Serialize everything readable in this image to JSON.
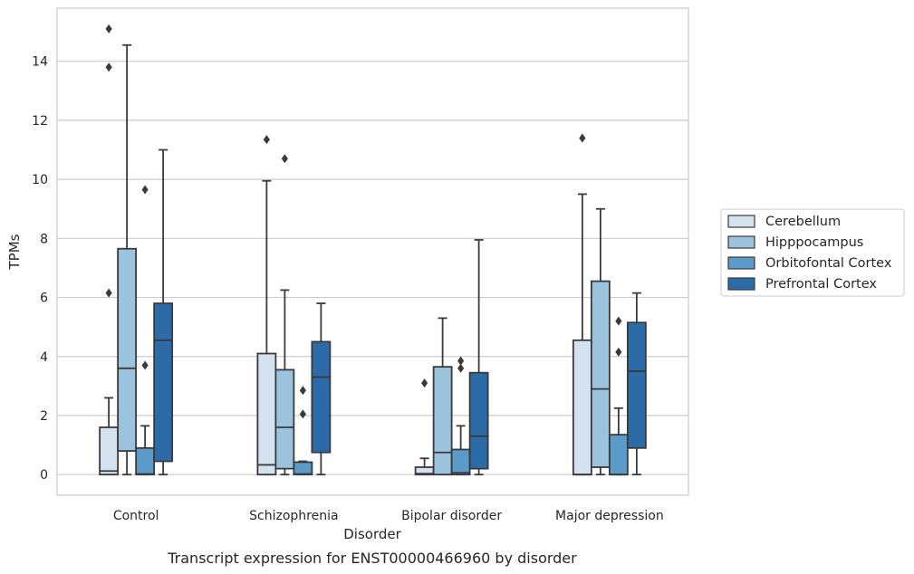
{
  "caption": "Transcript expression for ENST00000466960 by disorder",
  "chart_data": {
    "type": "box",
    "xlabel": "Disorder",
    "ylabel": "TPMs",
    "ylim": [
      -0.7,
      15.8
    ],
    "yticks": [
      0,
      2,
      4,
      6,
      8,
      10,
      12,
      14
    ],
    "grid": "horizontal",
    "legend_position": "right",
    "categories": [
      "Control",
      "Schizophrenia",
      "Bipolar disorder",
      "Major depression"
    ],
    "series": [
      {
        "name": "Cerebellum",
        "color": "#d4e2f0",
        "boxes": [
          {
            "whislo": 0,
            "q1": 0,
            "med": 0.12,
            "q3": 1.6,
            "whishi": 2.6,
            "fliers": [
              6.15,
              13.8,
              15.1
            ]
          },
          {
            "whislo": 0,
            "q1": 0,
            "med": 0.33,
            "q3": 4.1,
            "whishi": 9.95,
            "fliers": [
              11.35
            ]
          },
          {
            "whislo": 0,
            "q1": 0,
            "med": 0.03,
            "q3": 0.25,
            "whishi": 0.55,
            "fliers": [
              3.1
            ]
          },
          {
            "whislo": 0,
            "q1": 0,
            "med": 0,
            "q3": 4.55,
            "whishi": 9.5,
            "fliers": [
              11.4
            ]
          }
        ]
      },
      {
        "name": "Hipppocampus",
        "color": "#9bc3de",
        "boxes": [
          {
            "whislo": 0,
            "q1": 0.8,
            "med": 3.6,
            "q3": 7.65,
            "whishi": 14.55,
            "fliers": []
          },
          {
            "whislo": 0,
            "q1": 0.2,
            "med": 1.6,
            "q3": 3.55,
            "whishi": 6.25,
            "fliers": [
              10.7
            ]
          },
          {
            "whislo": 0,
            "q1": 0,
            "med": 0.75,
            "q3": 3.65,
            "whishi": 5.3,
            "fliers": []
          },
          {
            "whislo": 0,
            "q1": 0.25,
            "med": 2.9,
            "q3": 6.55,
            "whishi": 9.0,
            "fliers": []
          }
        ]
      },
      {
        "name": "Orbitofontal Cortex",
        "color": "#5a9bc9",
        "boxes": [
          {
            "whislo": 0,
            "q1": 0,
            "med": 0.02,
            "q3": 0.9,
            "whishi": 1.65,
            "fliers": [
              3.7,
              9.65
            ]
          },
          {
            "whislo": 0,
            "q1": 0,
            "med": 0.02,
            "q3": 0.42,
            "whishi": 0.45,
            "fliers": [
              2.05,
              2.85
            ]
          },
          {
            "whislo": 0,
            "q1": 0,
            "med": 0.06,
            "q3": 0.85,
            "whishi": 1.65,
            "fliers": [
              3.6,
              3.85
            ]
          },
          {
            "whislo": 0,
            "q1": 0,
            "med": 0,
            "q3": 1.35,
            "whishi": 2.25,
            "fliers": [
              4.15,
              5.2
            ]
          }
        ]
      },
      {
        "name": "Prefrontal Cortex",
        "color": "#2d6ba8",
        "boxes": [
          {
            "whislo": 0,
            "q1": 0.45,
            "med": 4.55,
            "q3": 5.8,
            "whishi": 11.0,
            "fliers": []
          },
          {
            "whislo": 0,
            "q1": 0.75,
            "med": 3.3,
            "q3": 4.5,
            "whishi": 5.8,
            "fliers": []
          },
          {
            "whislo": 0,
            "q1": 0.2,
            "med": 1.3,
            "q3": 3.45,
            "whishi": 7.95,
            "fliers": []
          },
          {
            "whislo": 0,
            "q1": 0.9,
            "med": 3.5,
            "q3": 5.15,
            "whishi": 6.15,
            "fliers": []
          }
        ]
      }
    ]
  }
}
